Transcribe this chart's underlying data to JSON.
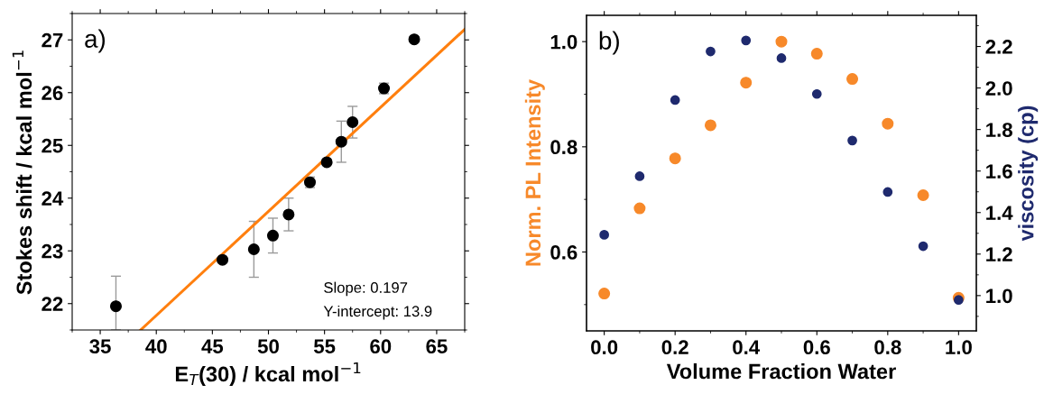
{
  "chart_data": [
    {
      "type": "scatter",
      "xlabel": "E$_{T}$(30) / kcal mol$^{−1}$",
      "ylabel": "Stokes shift / kcal mol$^{−1}$",
      "xlim": [
        32.5,
        67.5
      ],
      "xticks": [
        35,
        40,
        45,
        50,
        55,
        60,
        65
      ],
      "ylim": [
        21.5,
        27.5
      ],
      "yticks": [
        22,
        23,
        24,
        25,
        26,
        27
      ],
      "legend": false,
      "grid": false,
      "annotations": [
        "a)",
        "Slope: 0.197",
        "Y-intercept: 13.9"
      ],
      "x": [
        36.4,
        45.9,
        48.7,
        50.4,
        51.8,
        53.7,
        55.2,
        56.5,
        57.5,
        60.3,
        63.0
      ],
      "series": [
        {
          "color": "#000000",
          "marker": "circle",
          "values": [
            21.95,
            22.83,
            23.03,
            23.29,
            23.69,
            24.3,
            24.68,
            25.07,
            25.44,
            26.08,
            27.01
          ],
          "errors": [
            [
              21.5,
              22.52
            ],
            0.03,
            0.53,
            0.33,
            0.31,
            0.1,
            0.05,
            0.39,
            0.3,
            0.1,
            0.05
          ]
        },
        {
          "type": "line",
          "color": "#ff7f0e",
          "marker": "none",
          "x": [
            38.6,
            67.5
          ],
          "values": [
            21.5,
            27.2
          ]
        }
      ]
    },
    {
      "type": "scatter",
      "xlabel": "Volume Fraction Water",
      "ylabel": "Norm. PL Intensity",
      "y2label": "viscosity (cp)",
      "xlim": [
        -0.05,
        1.05
      ],
      "xticks": [
        {
          "value": 0,
          "label": "0.0"
        },
        0.2,
        0.4,
        0.6,
        0.8,
        {
          "value": 1,
          "label": "1.0"
        }
      ],
      "ylim": [
        0.45,
        1.05
      ],
      "yticks": [
        0.6,
        0.8,
        {
          "value": 1,
          "label": "1.0"
        }
      ],
      "y2lim": [
        0.83,
        2.35
      ],
      "y2ticks": [
        {
          "value": 1,
          "label": "1.0"
        },
        1.2,
        1.4,
        1.6,
        1.8,
        {
          "value": 2,
          "label": "2.0"
        },
        2.2
      ],
      "marker": "circle",
      "legend": false,
      "grid": false,
      "annotations": [
        "b)"
      ],
      "x": [
        0,
        0.1,
        0.2,
        0.3,
        0.4,
        0.5,
        0.6,
        0.7,
        0.8,
        0.9,
        1.0
      ],
      "series": [
        {
          "color": "#f7892a",
          "values": [
            0.521,
            0.683,
            0.778,
            0.841,
            0.922,
            1.0,
            0.977,
            0.929,
            0.844,
            0.708,
            0.513
          ]
        },
        {
          "color": "#1f2a6e",
          "axis": "y2",
          "values": [
            1.293,
            1.575,
            1.942,
            2.176,
            2.229,
            2.144,
            1.971,
            1.747,
            1.499,
            1.238,
            0.979
          ]
        }
      ]
    }
  ]
}
